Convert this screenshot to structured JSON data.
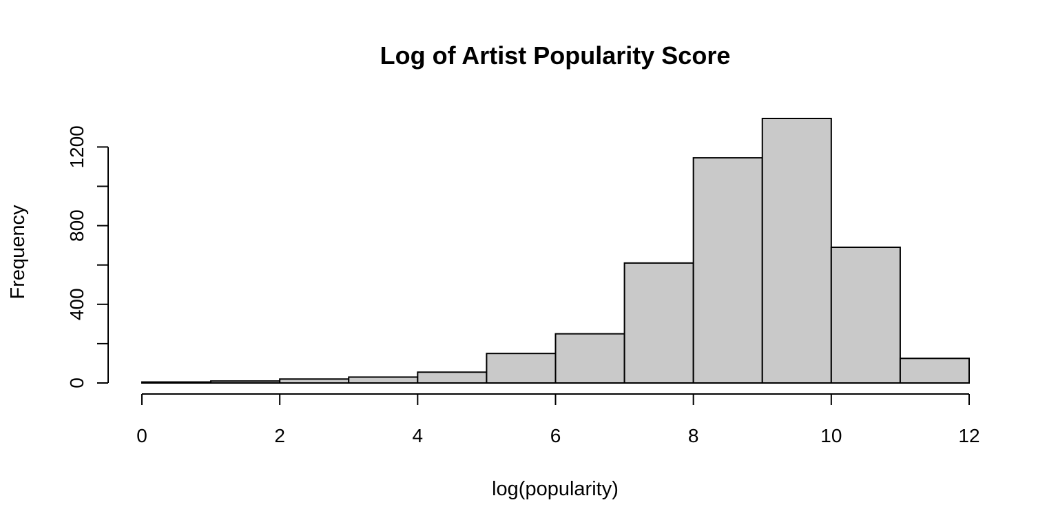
{
  "chart_data": {
    "type": "bar",
    "title": "Log of Artist Popularity Score",
    "xlabel": "log(popularity)",
    "ylabel": "Frequency",
    "bin_edges": [
      0,
      1,
      2,
      3,
      4,
      5,
      6,
      7,
      8,
      9,
      10,
      11,
      12
    ],
    "values": [
      5,
      10,
      20,
      30,
      55,
      150,
      250,
      610,
      1145,
      1345,
      690,
      125
    ],
    "xlim": [
      0,
      12
    ],
    "ylim": [
      0,
      1345
    ],
    "x_ticks": [
      "0",
      "2",
      "4",
      "6",
      "8",
      "10",
      "12"
    ],
    "y_ticks": [
      "0",
      "400",
      "800",
      "1200"
    ],
    "grid": false,
    "bar_fill": "#c9c9c9",
    "bar_stroke": "#000000"
  }
}
